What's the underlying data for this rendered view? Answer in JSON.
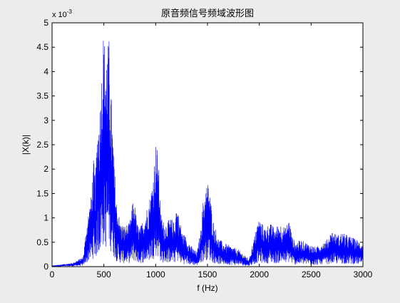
{
  "chart_data": {
    "type": "line",
    "title": "原音频信号频域波形图",
    "xlabel": "f (Hz)",
    "ylabel": "|X(k)|",
    "y_exponent_label": "x 10",
    "y_exponent_power": "-3",
    "xlim": [
      0,
      3000
    ],
    "ylim": [
      0,
      5
    ],
    "x_ticks": [
      0,
      500,
      1000,
      1500,
      2000,
      2500,
      3000
    ],
    "y_ticks": [
      0,
      0.5,
      1,
      1.5,
      2,
      2.5,
      3,
      3.5,
      4,
      4.5,
      5
    ],
    "grid": false,
    "series_color": "#0000ff",
    "series": [
      {
        "x": [
          0,
          100,
          200,
          300,
          340,
          380,
          400,
          420,
          440,
          460,
          480,
          495,
          510,
          530,
          550,
          570,
          590,
          620,
          660,
          700,
          750,
          780,
          800,
          820,
          850,
          900,
          950,
          980,
          1000,
          1020,
          1035,
          1050,
          1080,
          1120,
          1150,
          1180,
          1200,
          1230,
          1260,
          1300,
          1350,
          1400,
          1430,
          1460,
          1490,
          1510,
          1525,
          1550,
          1600,
          1650,
          1700,
          1750,
          1800,
          1850,
          1900,
          1950,
          1980,
          2000,
          2050,
          2100,
          2150,
          2200,
          2250,
          2290,
          2320,
          2350,
          2400,
          2450,
          2500,
          2550,
          2600,
          2650,
          2700,
          2750,
          2800,
          2850,
          2900,
          2950,
          3000
        ],
        "y": [
          0.02,
          0.05,
          0.08,
          0.2,
          1.0,
          1.5,
          2.2,
          1.9,
          3.0,
          3.3,
          4.2,
          4.85,
          4.6,
          4.5,
          4.7,
          3.6,
          2.6,
          1.4,
          0.9,
          0.85,
          0.9,
          1.35,
          1.3,
          0.9,
          0.8,
          1.1,
          1.5,
          2.0,
          2.55,
          2.4,
          1.8,
          1.1,
          0.9,
          0.95,
          1.0,
          0.9,
          1.3,
          1.0,
          0.7,
          0.6,
          0.4,
          0.3,
          0.7,
          1.4,
          1.7,
          1.75,
          1.5,
          1.0,
          0.6,
          0.5,
          0.45,
          0.4,
          0.35,
          0.25,
          0.15,
          0.6,
          0.9,
          1.0,
          0.8,
          0.9,
          0.8,
          0.9,
          0.8,
          1.0,
          0.6,
          0.5,
          0.55,
          0.5,
          0.45,
          0.4,
          0.5,
          0.55,
          0.75,
          0.65,
          0.7,
          0.65,
          0.6,
          0.55,
          0.5
        ]
      }
    ]
  }
}
